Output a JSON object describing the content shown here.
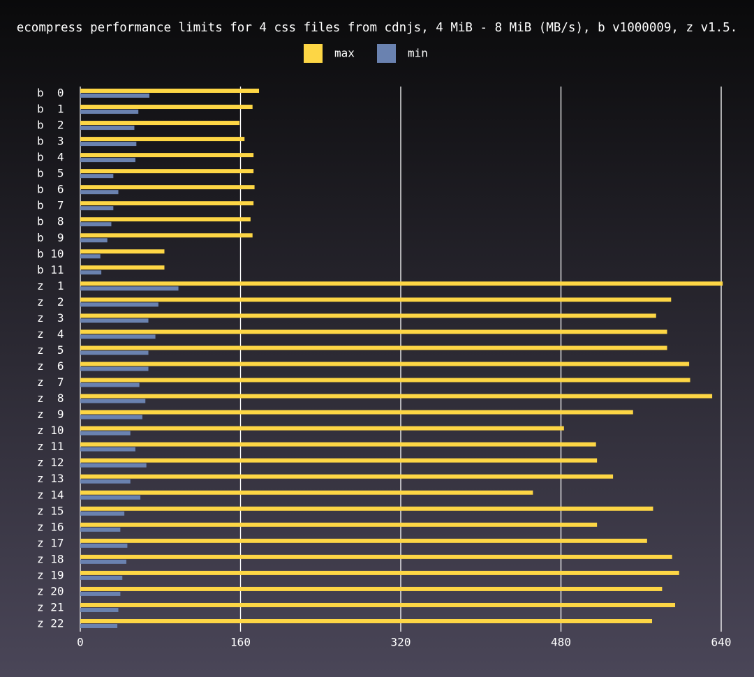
{
  "chart_data": {
    "type": "barh",
    "title": "ecompress performance limits for 4 css files from cdnjs, 4 MiB - 8 MiB (MB/s), b v1000009, z v1.5.",
    "categories": [
      "b  0",
      "b  1",
      "b  2",
      "b  3",
      "b  4",
      "b  5",
      "b  6",
      "b  7",
      "b  8",
      "b  9",
      "b 10",
      "b 11",
      "z  1",
      "z  2",
      "z  3",
      "z  4",
      "z  5",
      "z  6",
      "z  7",
      "z  8",
      "z  9",
      "z 10",
      "z 11",
      "z 12",
      "z 13",
      "z 14",
      "z 15",
      "z 16",
      "z 17",
      "z 18",
      "z 19",
      "z 20",
      "z 21",
      "z 22"
    ],
    "series": [
      {
        "name": "max",
        "color": "#fdd645",
        "values": [
          178.5,
          172,
          159,
          164,
          173,
          173,
          174,
          173,
          170,
          172,
          84,
          84,
          641.5,
          590,
          575,
          586,
          586,
          608,
          609,
          631,
          552,
          483,
          515,
          516,
          532,
          452,
          572,
          516,
          566,
          591,
          598,
          581,
          594,
          571
        ]
      },
      {
        "name": "min",
        "color": "#6a82b0",
        "values": [
          69,
          58,
          54,
          56,
          55,
          33,
          38,
          33,
          31,
          27,
          20,
          21,
          98,
          78,
          68,
          75,
          68,
          68,
          59,
          65,
          62,
          50,
          55,
          66,
          50,
          60,
          44,
          40,
          47,
          46,
          42,
          40,
          38,
          37
        ]
      }
    ],
    "xlim": [
      0,
      640
    ],
    "xticks": [
      0,
      160,
      320,
      480,
      640
    ],
    "grid": true
  }
}
